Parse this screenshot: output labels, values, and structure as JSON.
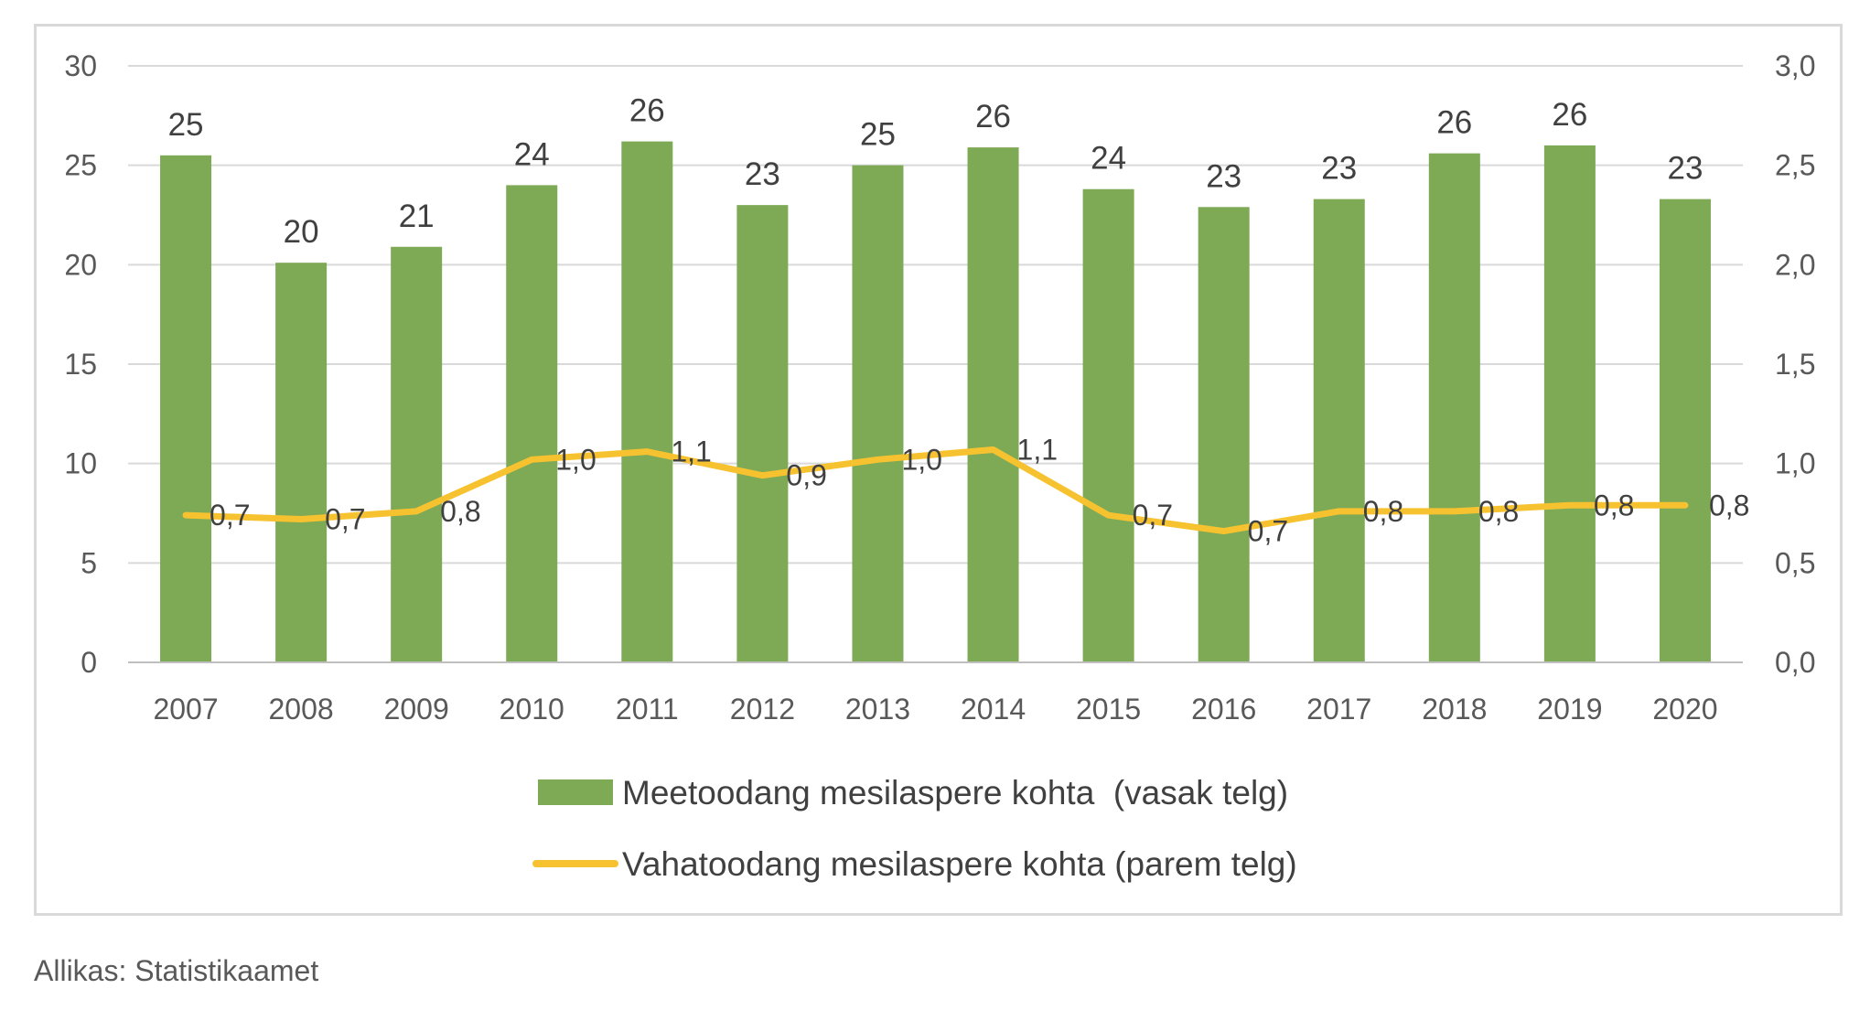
{
  "chart_data": {
    "type": "bar",
    "categories": [
      "2007",
      "2008",
      "2009",
      "2010",
      "2011",
      "2012",
      "2013",
      "2014",
      "2015",
      "2016",
      "2017",
      "2018",
      "2019",
      "2020"
    ],
    "series": [
      {
        "name": "Meetoodang mesilaspere kohta  (vasak telg)",
        "type": "bar",
        "axis": "left",
        "values": [
          25.5,
          20.1,
          20.9,
          24.0,
          26.2,
          23.0,
          25.0,
          25.9,
          23.8,
          22.9,
          23.3,
          25.6,
          26.0,
          23.3
        ],
        "labels": [
          "25",
          "20",
          "21",
          "24",
          "26",
          "23",
          "25",
          "26",
          "24",
          "23",
          "23",
          "26",
          "26",
          "23"
        ]
      },
      {
        "name": "Vahatoodang mesilaspere kohta (parem telg)",
        "type": "line",
        "axis": "right",
        "values": [
          0.74,
          0.72,
          0.76,
          1.02,
          1.06,
          0.94,
          1.02,
          1.07,
          0.74,
          0.66,
          0.76,
          0.76,
          0.79,
          0.79
        ],
        "labels": [
          "0,7",
          "0,7",
          "0,8",
          "1,0",
          "1,1",
          "0,9",
          "1,0",
          "1,1",
          "0,7",
          "0,7",
          "0,8",
          "0,8",
          "0,8",
          "0,8"
        ]
      }
    ],
    "y_left": {
      "range": [
        0,
        30
      ],
      "ticks": [
        "0",
        "5",
        "10",
        "15",
        "20",
        "25",
        "30"
      ]
    },
    "y_right": {
      "range": [
        0,
        3
      ],
      "ticks": [
        "0,0",
        "0,5",
        "1,0",
        "1,5",
        "2,0",
        "2,5",
        "3,0"
      ]
    },
    "grid": true,
    "legend": "bottom",
    "colors": {
      "bar": "#7ea955",
      "line": "#f7c230",
      "grid": "#d9d9d9",
      "axis": "#bfbfbf"
    }
  },
  "source_note": "Allikas: Statistikaamet"
}
